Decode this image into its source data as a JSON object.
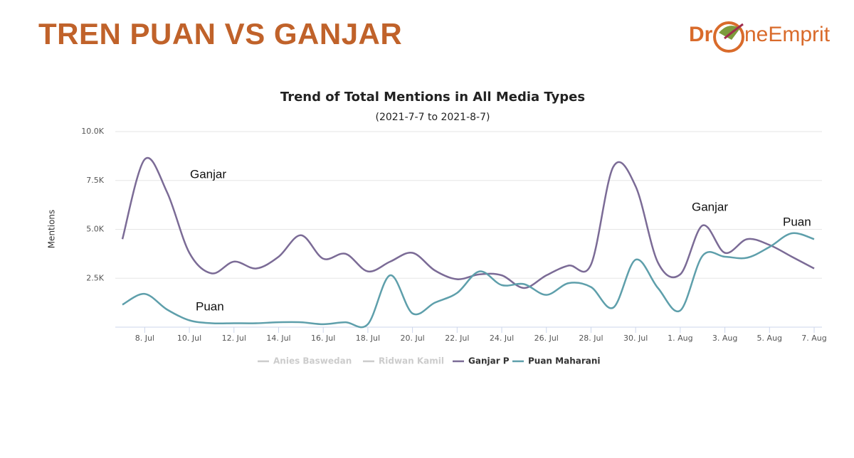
{
  "header": {
    "title": "TREN PUAN VS GANJAR"
  },
  "logo": {
    "left": "Dr",
    "right": "neEmprit"
  },
  "chart_data": {
    "type": "line",
    "title": "Trend of Total Mentions in All Media Types",
    "subtitle": "(2021-7-7 to 2021-8-7)",
    "y_label": "Mentions",
    "categories": [
      null,
      "8. Jul",
      null,
      "10. Jul",
      null,
      "12. Jul",
      null,
      "14. Jul",
      null,
      "16. Jul",
      null,
      "18. Jul",
      null,
      "20. Jul",
      null,
      "22. Jul",
      null,
      "24. Jul",
      null,
      "26. Jul",
      null,
      "28. Jul",
      null,
      "30. Jul",
      null,
      "1. Aug",
      null,
      "3. Aug",
      null,
      "5. Aug",
      null,
      "7. Aug"
    ],
    "ylim": [
      0,
      10000
    ],
    "yticks": [
      {
        "value": 2500,
        "label": "2.5K"
      },
      {
        "value": 5000,
        "label": "5.0K"
      },
      {
        "value": 7500,
        "label": "7.5K"
      },
      {
        "value": 10000,
        "label": "10.0K"
      }
    ],
    "grid": true,
    "hidden_series": [
      {
        "name": "Anies Baswedan",
        "color": "#cccccc"
      },
      {
        "name": "Ridwan Kamil",
        "color": "#cccccc"
      }
    ],
    "series": [
      {
        "name": "Ganjar P",
        "color": "#7b6b96",
        "values": [
          4500,
          8580,
          6900,
          3800,
          2750,
          3350,
          3000,
          3600,
          4700,
          3500,
          3750,
          2850,
          3350,
          3800,
          2900,
          2450,
          2700,
          2650,
          2000,
          2650,
          3150,
          3200,
          8200,
          7200,
          3300,
          2700,
          5200,
          3800,
          4500,
          4200,
          3600,
          3000
        ]
      },
      {
        "name": "Puan Maharani",
        "color": "#5e9fab",
        "values": [
          1150,
          1700,
          900,
          350,
          200,
          200,
          200,
          250,
          250,
          150,
          250,
          150,
          2650,
          700,
          1250,
          1750,
          2850,
          2150,
          2200,
          1650,
          2250,
          2050,
          1000,
          3450,
          2000,
          850,
          3650,
          3600,
          3550,
          4100,
          4800,
          4500
        ]
      }
    ],
    "annotations": [
      "Ganjar",
      "Puan",
      "Ganjar",
      "Puan"
    ]
  }
}
